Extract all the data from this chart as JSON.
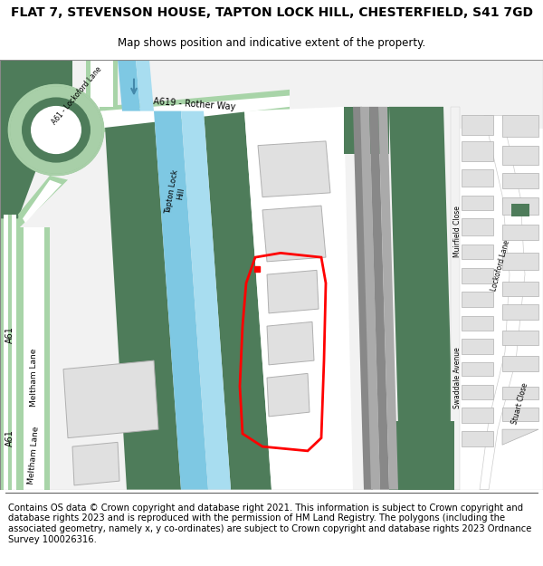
{
  "title": "FLAT 7, STEVENSON HOUSE, TAPTON LOCK HILL, CHESTERFIELD, S41 7GD",
  "subtitle": "Map shows position and indicative extent of the property.",
  "footer": "Contains OS data © Crown copyright and database right 2021. This information is subject to Crown copyright and database rights 2023 and is reproduced with the permission of HM Land Registry. The polygons (including the associated geometry, namely x, y co-ordinates) are subject to Crown copyright and database rights 2023 Ordnance Survey 100026316.",
  "bg_color": "#ffffff",
  "map_bg": "#f2f2f2",
  "green_dark": "#4e7c5a",
  "green_light": "#a8cfa8",
  "green_road": "#a8d4a8",
  "green_road_dark": "#7ab07a",
  "blue_canal": "#7ec8e3",
  "blue_canal2": "#a8ddf0",
  "red_polygon": "#ff0000",
  "building_fill": "#e0e0e0",
  "building_outline": "#b0b0b0",
  "road_gray": "#cccccc",
  "title_fontsize": 10,
  "subtitle_fontsize": 8.5,
  "footer_fontsize": 7.2
}
